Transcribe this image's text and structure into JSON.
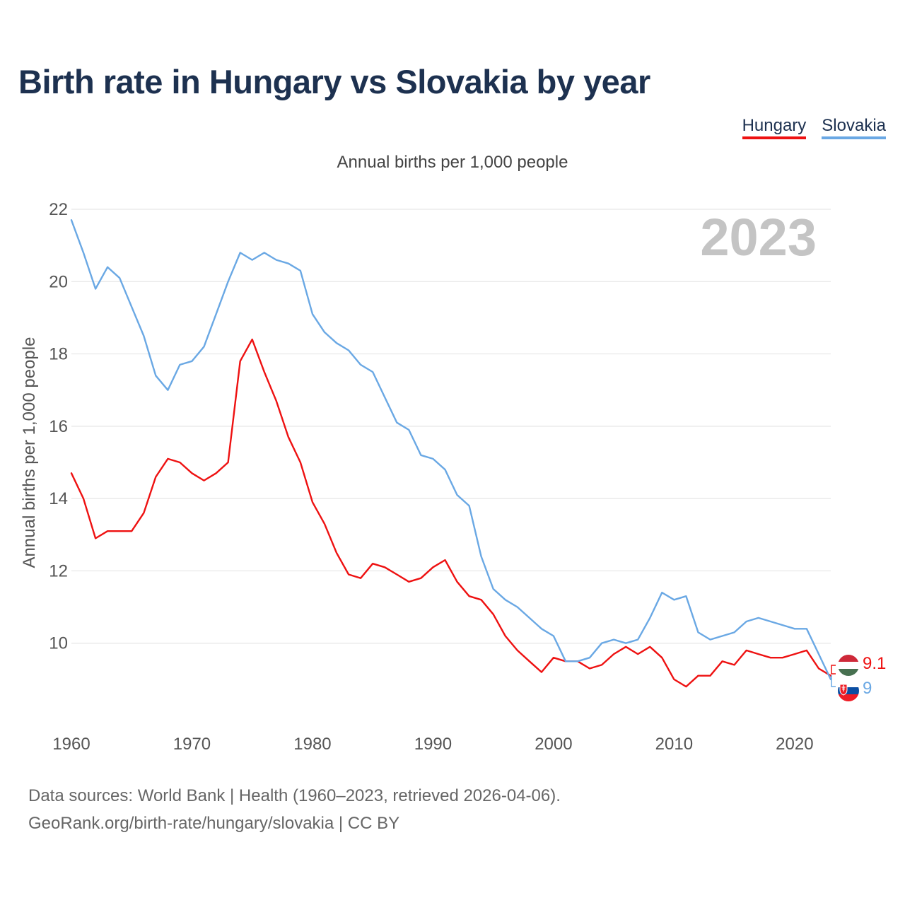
{
  "title": "Birth rate in Hungary vs Slovakia by year",
  "subtitle": "Annual births per 1,000 people",
  "legend": [
    {
      "label": "Hungary",
      "color": "#ee1111"
    },
    {
      "label": "Slovakia",
      "color": "#6aa8e4"
    }
  ],
  "year_watermark": "2023",
  "end_labels": {
    "hungary": "9.1",
    "slovakia": "9"
  },
  "source": {
    "line1": "Data sources: World Bank | Health (1960–2023, retrieved 2026-04-06).",
    "line2": "GeoRank.org/birth-rate/hungary/slovakia | CC BY"
  },
  "chart_data": {
    "type": "line",
    "title": "Birth rate in Hungary vs Slovakia by year",
    "xlabel": "",
    "ylabel": "Annual births per 1,000 people",
    "xlim": [
      1960,
      2023
    ],
    "ylim": [
      8,
      22
    ],
    "x_ticks": [
      1960,
      1970,
      1980,
      1990,
      2000,
      2010,
      2020
    ],
    "y_ticks": [
      10,
      12,
      14,
      16,
      18,
      20,
      22
    ],
    "grid": true,
    "x": [
      1960,
      1961,
      1962,
      1963,
      1964,
      1965,
      1966,
      1967,
      1968,
      1969,
      1970,
      1971,
      1972,
      1973,
      1974,
      1975,
      1976,
      1977,
      1978,
      1979,
      1980,
      1981,
      1982,
      1983,
      1984,
      1985,
      1986,
      1987,
      1988,
      1989,
      1990,
      1991,
      1992,
      1993,
      1994,
      1995,
      1996,
      1997,
      1998,
      1999,
      2000,
      2001,
      2002,
      2003,
      2004,
      2005,
      2006,
      2007,
      2008,
      2009,
      2010,
      2011,
      2012,
      2013,
      2014,
      2015,
      2016,
      2017,
      2018,
      2019,
      2020,
      2021,
      2022,
      2023
    ],
    "series": [
      {
        "name": "Hungary",
        "color": "#ee1111",
        "values": [
          14.7,
          14.0,
          12.9,
          13.1,
          13.1,
          13.1,
          13.6,
          14.6,
          15.1,
          15.0,
          14.7,
          14.5,
          14.7,
          15.0,
          17.8,
          18.4,
          17.5,
          16.7,
          15.7,
          15.0,
          13.9,
          13.3,
          12.5,
          11.9,
          11.8,
          12.2,
          12.1,
          11.9,
          11.7,
          11.8,
          12.1,
          12.3,
          11.7,
          11.3,
          11.2,
          10.8,
          10.2,
          9.8,
          9.5,
          9.2,
          9.6,
          9.5,
          9.5,
          9.3,
          9.4,
          9.7,
          9.9,
          9.7,
          9.9,
          9.6,
          9.0,
          8.8,
          9.1,
          9.1,
          9.5,
          9.4,
          9.8,
          9.7,
          9.6,
          9.6,
          9.7,
          9.8,
          9.3,
          9.1
        ]
      },
      {
        "name": "Slovakia",
        "color": "#6aa8e4",
        "values": [
          21.7,
          20.8,
          19.8,
          20.4,
          20.1,
          19.3,
          18.5,
          17.4,
          17.0,
          17.7,
          17.8,
          18.2,
          19.1,
          20.0,
          20.8,
          20.6,
          20.8,
          20.6,
          20.5,
          20.3,
          19.1,
          18.6,
          18.3,
          18.1,
          17.7,
          17.5,
          16.8,
          16.1,
          15.9,
          15.2,
          15.1,
          14.8,
          14.1,
          13.8,
          12.4,
          11.5,
          11.2,
          11.0,
          10.7,
          10.4,
          10.2,
          9.5,
          9.5,
          9.6,
          10.0,
          10.1,
          10.0,
          10.1,
          10.7,
          11.4,
          11.2,
          11.3,
          10.3,
          10.1,
          10.2,
          10.3,
          10.6,
          10.7,
          10.6,
          10.5,
          10.4,
          10.4,
          9.7,
          9.0
        ]
      }
    ]
  }
}
